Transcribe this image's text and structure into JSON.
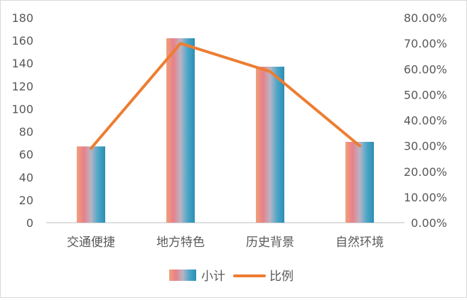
{
  "chart_data": {
    "type": "bar+line",
    "title": "",
    "categories": [
      "交通便捷",
      "地方特色",
      "历史背景",
      "自然环境"
    ],
    "series": [
      {
        "name": "小计",
        "type": "bar",
        "axis": "left",
        "values": [
          67,
          162,
          137,
          71
        ],
        "gradient": [
          "#f0a07a",
          "#e8808a",
          "#b9b4c4",
          "#4da6c8",
          "#2a8fb3"
        ]
      },
      {
        "name": "比例",
        "type": "line",
        "axis": "right",
        "values": [
          0.29,
          0.7,
          0.59,
          0.3
        ],
        "color": "#ed7d31"
      }
    ],
    "y_left": {
      "ylim": [
        0,
        180
      ],
      "ticks": [
        0,
        20,
        40,
        60,
        80,
        100,
        120,
        140,
        160,
        180
      ],
      "tick_labels": [
        "0",
        "20",
        "40",
        "60",
        "80",
        "100",
        "120",
        "140",
        "160",
        "180"
      ]
    },
    "y_right": {
      "ylim": [
        0,
        0.8
      ],
      "ticks": [
        0,
        0.1,
        0.2,
        0.3,
        0.4,
        0.5,
        0.6,
        0.7,
        0.8
      ],
      "tick_labels": [
        "0.00%",
        "10.00%",
        "20.00%",
        "30.00%",
        "40.00%",
        "50.00%",
        "60.00%",
        "70.00%",
        "80.00%"
      ]
    },
    "grid": false,
    "legend": {
      "placement": "bottom",
      "entries": [
        "小计",
        "比例"
      ]
    },
    "axis_color": "#bfbfbf",
    "text_color": "#595959"
  }
}
